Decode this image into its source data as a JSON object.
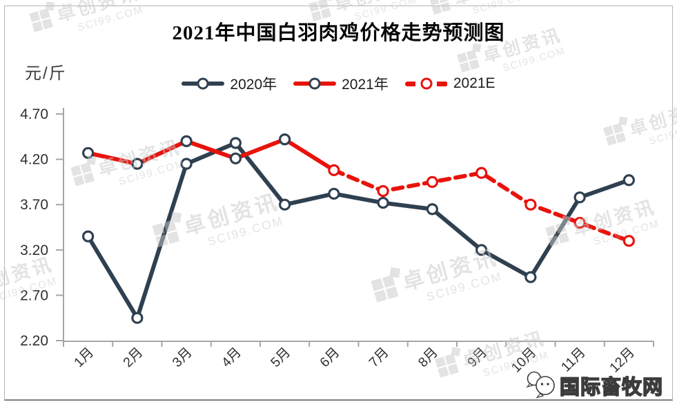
{
  "title": "2021年中国白羽肉鸡价格走势预测图",
  "unit_label": "元/斤",
  "legend": [
    {
      "label": "2020年"
    },
    {
      "label": "2021年"
    },
    {
      "label": "2021E"
    }
  ],
  "watermark": {
    "line1": "卓创资讯",
    "line2": "SCI99.COM"
  },
  "brand": {
    "name": "国际畜牧网",
    "icon": "chat-bubbles-icon"
  },
  "colors": {
    "line_2020": "#2f4050",
    "line_2021": "#e8130b",
    "axis": "#a6a6a6",
    "tick_label": "#303030",
    "watermark": "#c9c9c9",
    "brand_outline": "#3c3c3c"
  },
  "chart_data": {
    "type": "line",
    "title": "2021年中国白羽肉鸡价格走势预测图",
    "ylabel": "元/斤",
    "categories": [
      "1月",
      "2月",
      "3月",
      "4月",
      "5月",
      "6月",
      "7月",
      "8月",
      "9月",
      "10月",
      "11月",
      "12月"
    ],
    "ylim": [
      2.2,
      4.7
    ],
    "yticks": [
      4.7,
      4.2,
      3.7,
      3.2,
      2.7,
      2.2
    ],
    "grid": false,
    "legend_position": "top-center",
    "series": [
      {
        "name": "2020年",
        "style": "solid",
        "color": "#2f4050",
        "marker": "circle-open-white",
        "marker_stroke": "#2f4050",
        "start_month": 1,
        "values": [
          3.35,
          2.45,
          4.15,
          4.38,
          3.7,
          3.82,
          3.72,
          3.65,
          3.2,
          2.9,
          3.78,
          3.97
        ]
      },
      {
        "name": "2021年",
        "style": "solid",
        "color": "#e8130b",
        "marker": "circle-open-white",
        "marker_stroke": "#2f4050",
        "start_month": 1,
        "marker_skip_last": true,
        "values": [
          4.27,
          4.15,
          4.4,
          4.21,
          4.42,
          4.08
        ]
      },
      {
        "name": "2021E",
        "style": "dashed",
        "color": "#e8130b",
        "marker": "circle-open-white",
        "marker_stroke": "#e8130b",
        "start_month": 6,
        "values": [
          4.08,
          3.85,
          3.95,
          4.05,
          3.7,
          3.5,
          3.3
        ]
      }
    ]
  }
}
